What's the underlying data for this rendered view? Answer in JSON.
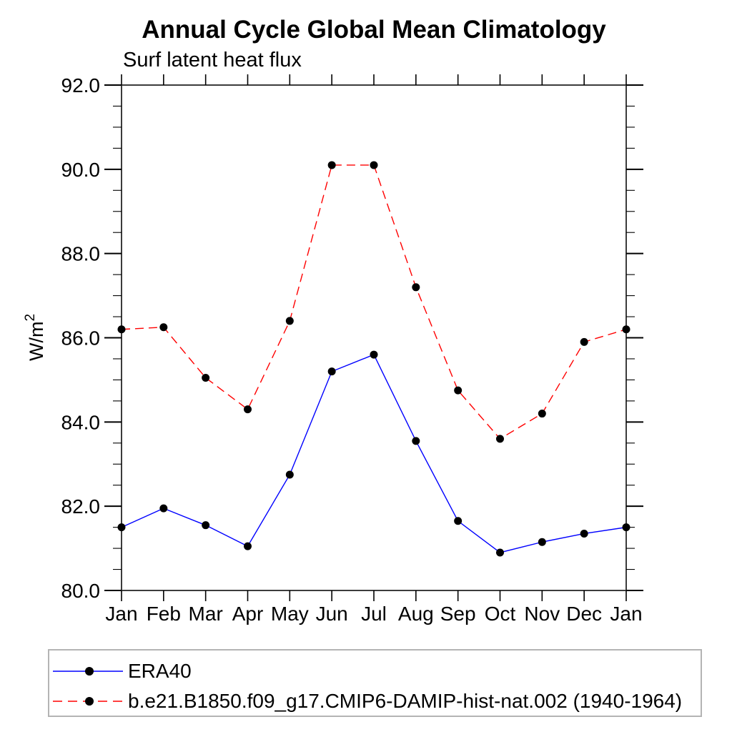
{
  "title": "Annual Cycle Global Mean Climatology",
  "subtitle": "Surf latent heat flux",
  "chart_data": {
    "type": "line",
    "categories": [
      "Jan",
      "Feb",
      "Mar",
      "Apr",
      "May",
      "Jun",
      "Jul",
      "Aug",
      "Sep",
      "Oct",
      "Nov",
      "Dec",
      "Jan"
    ],
    "series": [
      {
        "name": "ERA40",
        "color": "#0000ff",
        "line_style": "solid",
        "marker": "filled-circle",
        "marker_color": "#000000",
        "values": [
          81.5,
          81.95,
          81.55,
          81.05,
          82.75,
          85.2,
          85.6,
          83.55,
          81.65,
          80.9,
          81.15,
          81.35,
          81.5
        ]
      },
      {
        "name": "b.e21.B1850.f09_g17.CMIP6-DAMIP-hist-nat.002 (1940-1964)",
        "color": "#ff0000",
        "line_style": "dashed",
        "marker": "filled-circle",
        "marker_color": "#000000",
        "values": [
          86.2,
          86.25,
          85.05,
          84.3,
          86.4,
          90.1,
          90.1,
          87.2,
          84.75,
          83.6,
          84.2,
          85.9,
          86.2
        ]
      }
    ],
    "xlabel": "",
    "ylabel_base": "W/m",
    "ylabel_sup": "2",
    "ylim": [
      80.0,
      92.0
    ],
    "ytick_major_interval": 2.0,
    "ytick_minor_interval": 0.5,
    "ytick_labels": [
      "80.0",
      "82.0",
      "84.0",
      "86.0",
      "88.0",
      "90.0",
      "92.0"
    ],
    "grid": "off",
    "legend_position": "bottom-left-box"
  }
}
